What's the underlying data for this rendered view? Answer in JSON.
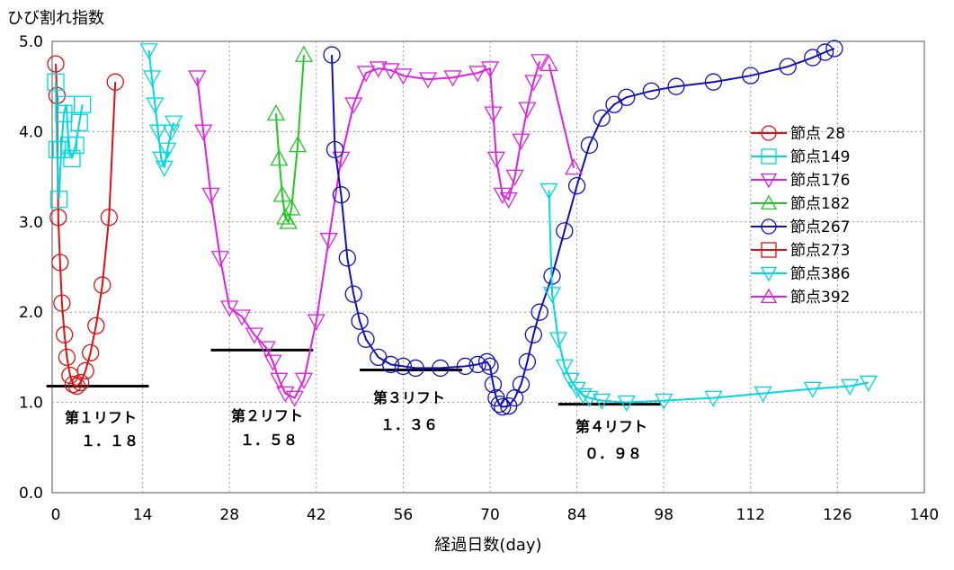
{
  "chart_data": {
    "type": "line",
    "ylabel": "ひび割れ指数",
    "xlabel": "経過日数(day)",
    "xlim": [
      0,
      140
    ],
    "ylim": [
      0,
      5
    ],
    "x_ticks": [
      "0",
      "14",
      "28",
      "42",
      "56",
      "70",
      "84",
      "98",
      "112",
      "126",
      "140"
    ],
    "y_ticks": [
      "0.0",
      "1.0",
      "2.0",
      "3.0",
      "4.0",
      "5.0"
    ],
    "grid": true,
    "legend_position": "right",
    "series": [
      {
        "name": "節点 28",
        "color": "#e01010",
        "marker": "circle",
        "x": [
          0.0,
          0.2,
          0.4,
          0.7,
          1.0,
          1.4,
          1.8,
          2.3,
          2.8,
          3.4,
          4.0,
          4.8,
          5.6,
          6.5,
          7.5,
          8.6,
          9.6
        ],
        "y": [
          4.75,
          4.4,
          3.05,
          2.55,
          2.1,
          1.75,
          1.5,
          1.3,
          1.2,
          1.18,
          1.22,
          1.35,
          1.55,
          1.85,
          2.3,
          3.05,
          4.55
        ]
      },
      {
        "name": "節点149",
        "color": "#00d8e0",
        "marker": "square",
        "x": [
          0.0,
          0.2,
          0.5,
          0.9,
          1.3,
          1.7,
          2.1,
          2.6,
          3.2,
          3.8,
          4.3
        ],
        "y": [
          4.55,
          3.8,
          3.25,
          3.8,
          4.2,
          4.3,
          3.85,
          3.7,
          3.85,
          4.1,
          4.3
        ]
      },
      {
        "name": "節点176",
        "color": "#e020e0",
        "marker": "triangle-down",
        "x": [
          22.8,
          23.8,
          25.0,
          26.5,
          28.0,
          30.0,
          32.0,
          34.0,
          35.0,
          36.0,
          37.0,
          38.5,
          40.0,
          42.0,
          44.0,
          46.0,
          48.0,
          50.0,
          52.0,
          54.0,
          56.0,
          60.0,
          64.0,
          68.0,
          70.0,
          70.5,
          71.0,
          72.0,
          73.0,
          74.0,
          75.0,
          76.0,
          77.0,
          78.0
        ],
        "y": [
          4.6,
          4.0,
          3.3,
          2.6,
          2.05,
          1.95,
          1.75,
          1.6,
          1.45,
          1.25,
          1.1,
          1.05,
          1.25,
          1.9,
          2.8,
          3.7,
          4.3,
          4.65,
          4.7,
          4.68,
          4.62,
          4.58,
          4.6,
          4.65,
          4.7,
          4.2,
          3.7,
          3.3,
          3.25,
          3.5,
          3.9,
          4.25,
          4.55,
          4.78
        ]
      },
      {
        "name": "節点182",
        "color": "#20c820",
        "marker": "triangle-up",
        "x": [
          35.5,
          36.0,
          36.5,
          37.0,
          37.5,
          38.0,
          39.0,
          40.0
        ],
        "y": [
          4.2,
          3.7,
          3.3,
          3.05,
          3.0,
          3.15,
          3.85,
          4.85
        ]
      },
      {
        "name": "節点267",
        "color": "#1010c0",
        "marker": "circle",
        "x": [
          44.5,
          45.0,
          46.0,
          47.0,
          48.0,
          49.0,
          50.0,
          52.0,
          54.0,
          56.0,
          58.0,
          62.0,
          66.0,
          68.0,
          69.5,
          70.0,
          70.5,
          71.0,
          71.5,
          72.0,
          73.0,
          74.0,
          75.0,
          76.0,
          77.0,
          78.0,
          80.0,
          82.0,
          84.0,
          86.0,
          88.0,
          90.0,
          92.0,
          96.0,
          100.0,
          106.0,
          112.0,
          118.0,
          122.0,
          124.0,
          125.5
        ],
        "y": [
          4.85,
          3.8,
          3.3,
          2.6,
          2.2,
          1.9,
          1.7,
          1.5,
          1.42,
          1.4,
          1.38,
          1.38,
          1.4,
          1.42,
          1.45,
          1.4,
          1.2,
          1.05,
          0.98,
          0.95,
          0.96,
          1.05,
          1.2,
          1.45,
          1.75,
          2.0,
          2.4,
          2.9,
          3.4,
          3.85,
          4.15,
          4.3,
          4.38,
          4.45,
          4.5,
          4.55,
          4.62,
          4.72,
          4.82,
          4.88,
          4.92
        ]
      },
      {
        "name": "節点273",
        "color": "#e01010",
        "marker": "square",
        "x": [],
        "y": []
      },
      {
        "name": "節点386",
        "color": "#00d8e0",
        "marker": "triangle-down",
        "x": [
          15.0,
          15.5,
          16.0,
          16.5,
          17.0,
          17.5,
          18.0,
          18.6,
          19.0,
          79.5,
          80.0,
          81.0,
          82.0,
          83.0,
          84.0,
          85.0,
          86.0,
          88.0,
          92.0,
          98.0,
          106.0,
          114.0,
          122.0,
          128.0,
          131.0
        ],
        "y": [
          4.9,
          4.6,
          4.3,
          4.0,
          3.7,
          3.6,
          3.8,
          4.0,
          4.1,
          3.35,
          2.2,
          1.7,
          1.4,
          1.25,
          1.15,
          1.08,
          1.05,
          1.02,
          1.0,
          1.02,
          1.05,
          1.1,
          1.15,
          1.18,
          1.22
        ]
      },
      {
        "name": "節点392",
        "color": "#e020e0",
        "marker": "triangle-up",
        "x": [
          79.5,
          83.5
        ],
        "y": [
          4.75,
          3.6
        ]
      }
    ],
    "annotations": [
      {
        "line1": "第１リフト",
        "line2": "１．１８",
        "y": 1.18,
        "x_start": -1.5,
        "x_end": 15.0
      },
      {
        "line1": "第２リフト",
        "line2": "１．５８",
        "y": 1.58,
        "x_start": 25.0,
        "x_end": 41.5
      },
      {
        "line1": "第３リフト",
        "line2": "１．３６",
        "y": 1.36,
        "x_start": 49.0,
        "x_end": 65.5
      },
      {
        "line1": "第４リフト",
        "line2": "０．９８",
        "y": 0.98,
        "x_start": 81.0,
        "x_end": 97.5
      }
    ]
  }
}
